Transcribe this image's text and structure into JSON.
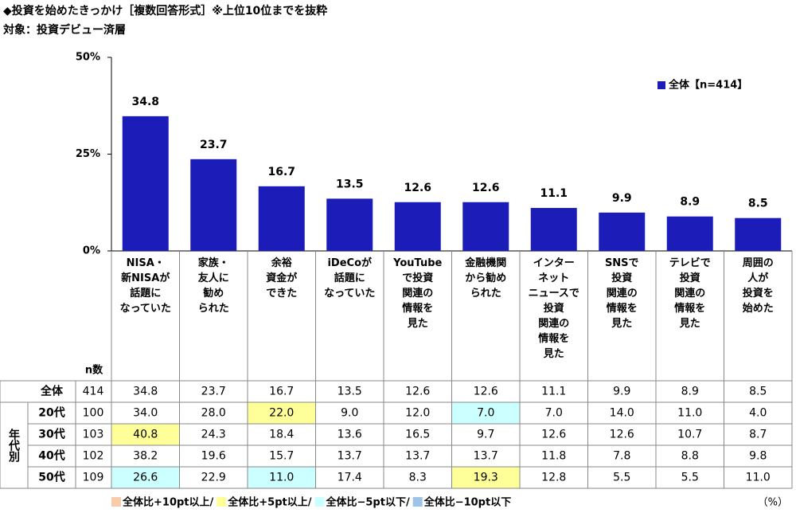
{
  "chart_data": {
    "type": "bar",
    "title": "◆投資を始めたきっかけ［複数回答形式］※上位10位までを抜粋",
    "subtitle": "対象：投資デビュー済層",
    "categories": [
      "NISA・\n新NISAが\n話題に\nなっていた",
      "家族・\n友人に\n勧め\nられた",
      "余裕\n資金が\nできた",
      "iDeCoが\n話題に\nなっていた",
      "YouTube\nで投資\n関連の\n情報を\n見た",
      "金融機関\nから勧め\nられた",
      "インター\nネット\nニュースで\n投資\n関連の\n情報を\n見た",
      "SNSで\n投資\n関連の\n情報を\n見た",
      "テレビで\n投資\n関連の\n情報を\n見た",
      "周囲の\n人が\n投資を\n始めた"
    ],
    "series": [
      {
        "name": "全体【n=414】",
        "color": "#1c1cb8",
        "values": [
          34.8,
          23.7,
          16.7,
          13.5,
          12.6,
          12.6,
          11.1,
          9.9,
          8.9,
          8.5
        ]
      }
    ],
    "ylim": [
      0,
      50
    ],
    "yticks": [
      {
        "value": 0,
        "label": "0%"
      },
      {
        "value": 25,
        "label": "25%"
      },
      {
        "value": 50,
        "label": "50%"
      }
    ],
    "grid": false,
    "legend": "top-right"
  },
  "table": {
    "n_header": "n数",
    "group_label": "年代別",
    "rows": [
      {
        "label": "全体",
        "n": 414,
        "values": [
          "34.8",
          "23.7",
          "16.7",
          "13.5",
          "12.6",
          "12.6",
          "11.1",
          "9.9",
          "8.9",
          "8.5"
        ]
      },
      {
        "label": "20代",
        "n": 100,
        "values": [
          "34.0",
          "28.0",
          "22.0",
          "9.0",
          "12.0",
          "7.0",
          "7.0",
          "14.0",
          "11.0",
          "4.0"
        ]
      },
      {
        "label": "30代",
        "n": 103,
        "values": [
          "40.8",
          "24.3",
          "18.4",
          "13.6",
          "16.5",
          "9.7",
          "12.6",
          "12.6",
          "10.7",
          "8.7"
        ]
      },
      {
        "label": "40代",
        "n": 102,
        "values": [
          "38.2",
          "19.6",
          "15.7",
          "13.7",
          "13.7",
          "13.7",
          "11.8",
          "7.8",
          "8.8",
          "9.8"
        ]
      },
      {
        "label": "50代",
        "n": 109,
        "values": [
          "26.6",
          "22.9",
          "11.0",
          "17.4",
          "8.3",
          "19.3",
          "12.8",
          "5.5",
          "5.5",
          "11.0"
        ]
      }
    ],
    "highlights": [
      {
        "row": 1,
        "col": 2,
        "legend": 1
      },
      {
        "row": 1,
        "col": 5,
        "legend": 2
      },
      {
        "row": 2,
        "col": 0,
        "legend": 1
      },
      {
        "row": 4,
        "col": 0,
        "legend": 2
      },
      {
        "row": 4,
        "col": 2,
        "legend": 2
      },
      {
        "row": 4,
        "col": 5,
        "legend": 1
      }
    ],
    "legend": [
      {
        "label": "全体比+10pt以上/",
        "color": "#f8cbad"
      },
      {
        "label": "全体比+5pt以上/",
        "color": "#ffff99"
      },
      {
        "label": "全体比−5pt以下/",
        "color": "#ccffff"
      },
      {
        "label": "全体比−10pt以下",
        "color": "#9dc3e6"
      }
    ],
    "unit": "（%）"
  }
}
